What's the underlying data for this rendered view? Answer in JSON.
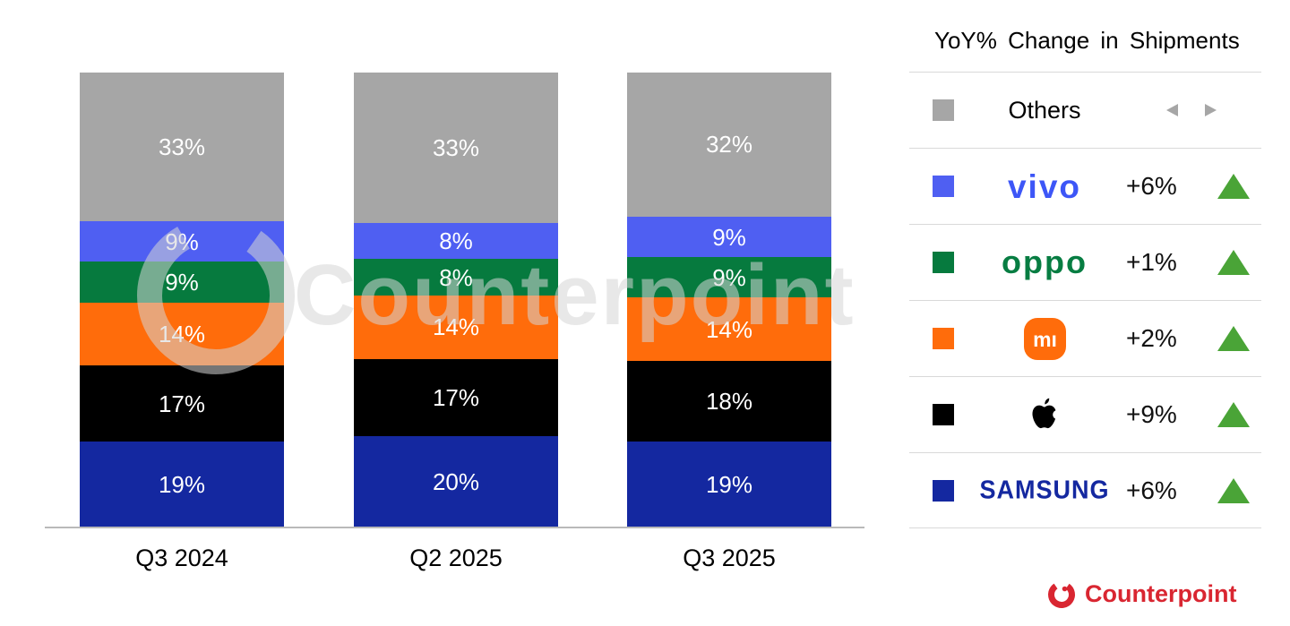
{
  "legend": {
    "title": "YoY% Change in Shipments"
  },
  "watermark": {
    "text": "Counterpoint"
  },
  "footer": {
    "brand": "Counterpoint"
  },
  "chart_data": {
    "type": "bar",
    "stacked": true,
    "title": "YoY% Change in Shipments",
    "categories": [
      "Q3 2024",
      "Q2 2025",
      "Q3 2025"
    ],
    "value_suffix": "%",
    "ylim": [
      0,
      100
    ],
    "grid": false,
    "legend_position": "right",
    "series": [
      {
        "name": "Others",
        "color": "#a6a6a6",
        "values": [
          33,
          33,
          32
        ],
        "change": "",
        "direction": "flat",
        "logo_type": "text",
        "logo_text": "Others"
      },
      {
        "name": "vivo",
        "color": "#4f5ff2",
        "values": [
          9,
          8,
          9
        ],
        "change": "+6%",
        "direction": "up",
        "logo_type": "text",
        "logo_text": "vivo"
      },
      {
        "name": "OPPO",
        "color": "#067a3e",
        "values": [
          9,
          8,
          9
        ],
        "change": "+1%",
        "direction": "up",
        "logo_type": "text",
        "logo_text": "oppo"
      },
      {
        "name": "Xiaomi",
        "color": "#ff6c0b",
        "values": [
          14,
          14,
          14
        ],
        "change": "+2%",
        "direction": "up",
        "logo_type": "mi",
        "logo_text": "mı"
      },
      {
        "name": "Apple",
        "color": "#000000",
        "values": [
          17,
          17,
          18
        ],
        "change": "+9%",
        "direction": "up",
        "logo_type": "apple",
        "logo_text": ""
      },
      {
        "name": "Samsung",
        "color": "#1428a0",
        "values": [
          19,
          20,
          19
        ],
        "change": "+6%",
        "direction": "up",
        "logo_type": "text",
        "logo_text": "SAMSUNG"
      }
    ],
    "accent_colors": {
      "up_triangle": "#4aa437",
      "flat_arrow": "#a6a6a6",
      "brand_red": "#d92631",
      "axis_line": "#b9b9b9",
      "separator": "#d9d9d9"
    }
  }
}
